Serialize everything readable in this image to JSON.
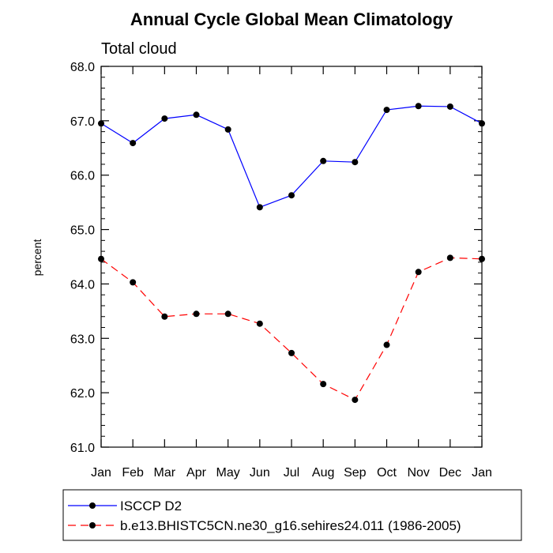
{
  "chart_data": {
    "type": "line",
    "title": "Annual Cycle Global Mean Climatology",
    "subtitle": "Total cloud",
    "ylabel": "percent",
    "xlabel": "",
    "categories": [
      "Jan",
      "Feb",
      "Mar",
      "Apr",
      "May",
      "Jun",
      "Jul",
      "Aug",
      "Sep",
      "Oct",
      "Nov",
      "Dec",
      "Jan"
    ],
    "ylim": [
      61.0,
      68.0
    ],
    "yticks": [
      "61.0",
      "62.0",
      "63.0",
      "64.0",
      "65.0",
      "66.0",
      "67.0",
      "68.0"
    ],
    "grid": false,
    "legend_position": "bottom",
    "series": [
      {
        "name": "ISCCP D2",
        "color": "#0000ff",
        "line_style": "solid",
        "marker": "filled-circle",
        "values": [
          66.95,
          66.59,
          67.04,
          67.11,
          66.84,
          65.41,
          65.63,
          66.26,
          66.24,
          67.2,
          67.27,
          67.26,
          66.95
        ]
      },
      {
        "name": "b.e13.BHISTC5CN.ne30_g16.sehires24.011 (1986-2005)",
        "color": "#ff0000",
        "line_style": "dashed",
        "marker": "filled-circle",
        "values": [
          64.46,
          64.03,
          63.4,
          63.45,
          63.45,
          63.27,
          62.73,
          62.16,
          61.87,
          62.88,
          64.22,
          64.48,
          64.46
        ]
      }
    ]
  }
}
